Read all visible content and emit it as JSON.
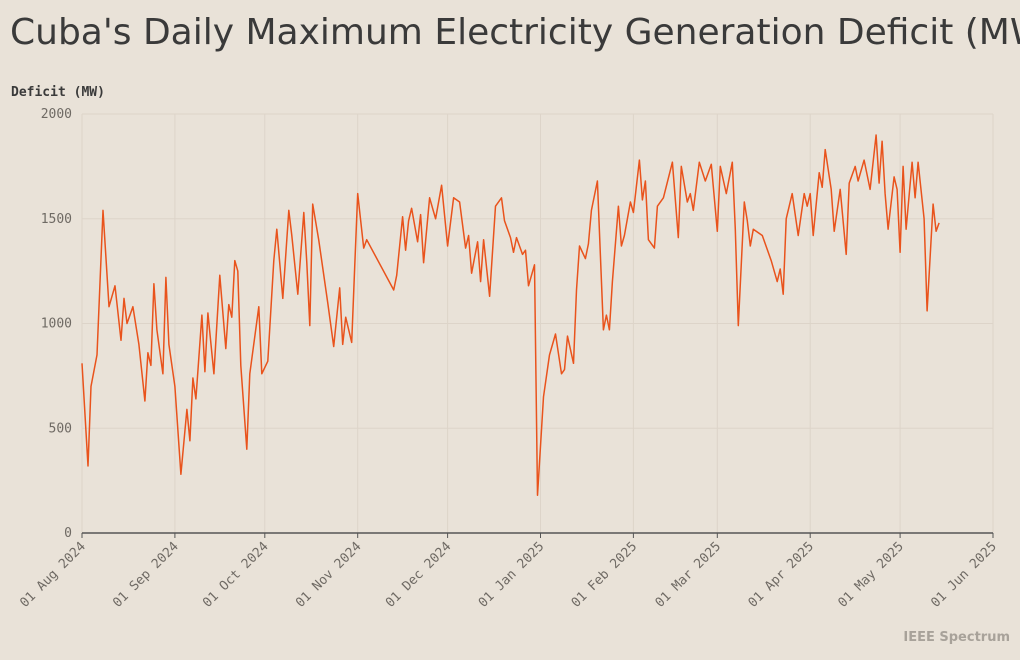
{
  "chart_data": {
    "type": "line",
    "title": "Cuba's Daily Maximum Electricity Generation Deficit (MW)",
    "y_label": "Deficit (MW)",
    "brand": "IEEE Spectrum",
    "xlim": [
      "2024-08-01",
      "2025-06-01"
    ],
    "xticks": [
      {
        "value": "2024-08-01",
        "label": "01 Aug 2024"
      },
      {
        "value": "2024-09-01",
        "label": "01 Sep 2024"
      },
      {
        "value": "2024-10-01",
        "label": "01 Oct 2024"
      },
      {
        "value": "2024-11-01",
        "label": "01 Nov 2024"
      },
      {
        "value": "2024-12-01",
        "label": "01 Dec 2024"
      },
      {
        "value": "2025-01-01",
        "label": "01 Jan 2025"
      },
      {
        "value": "2025-02-01",
        "label": "01 Feb 2025"
      },
      {
        "value": "2025-03-01",
        "label": "01 Mar 2025"
      },
      {
        "value": "2025-04-01",
        "label": "01 Apr 2025"
      },
      {
        "value": "2025-05-01",
        "label": "01 May 2025"
      },
      {
        "value": "2025-06-01",
        "label": "01 Jun 2025"
      }
    ],
    "ylim": [
      0,
      2000
    ],
    "yticks": [
      0,
      500,
      1000,
      1500,
      2000
    ],
    "grid": true,
    "x": [
      "2024-08-01",
      "2024-08-03",
      "2024-08-04",
      "2024-08-06",
      "2024-08-08",
      "2024-08-10",
      "2024-08-12",
      "2024-08-14",
      "2024-08-15",
      "2024-08-16",
      "2024-08-18",
      "2024-08-20",
      "2024-08-22",
      "2024-08-23",
      "2024-08-24",
      "2024-08-25",
      "2024-08-26",
      "2024-08-28",
      "2024-08-29",
      "2024-08-30",
      "2024-09-01",
      "2024-09-03",
      "2024-09-05",
      "2024-09-06",
      "2024-09-07",
      "2024-09-08",
      "2024-09-10",
      "2024-09-11",
      "2024-09-12",
      "2024-09-14",
      "2024-09-16",
      "2024-09-18",
      "2024-09-19",
      "2024-09-20",
      "2024-09-21",
      "2024-09-22",
      "2024-09-23",
      "2024-09-25",
      "2024-09-26",
      "2024-09-29",
      "2024-09-30",
      "2024-10-02",
      "2024-10-04",
      "2024-10-05",
      "2024-10-07",
      "2024-10-09",
      "2024-10-10",
      "2024-10-12",
      "2024-10-14",
      "2024-10-15",
      "2024-10-16",
      "2024-10-17",
      "2024-10-19",
      "2024-10-22",
      "2024-10-24",
      "2024-10-26",
      "2024-10-27",
      "2024-10-28",
      "2024-10-30",
      "2024-10-31",
      "2024-11-01",
      "2024-11-03",
      "2024-11-04",
      "2024-11-13",
      "2024-11-14",
      "2024-11-16",
      "2024-11-17",
      "2024-11-18",
      "2024-11-19",
      "2024-11-21",
      "2024-11-22",
      "2024-11-23",
      "2024-11-25",
      "2024-11-27",
      "2024-11-29",
      "2024-12-01",
      "2024-12-03",
      "2024-12-05",
      "2024-12-07",
      "2024-12-08",
      "2024-12-09",
      "2024-12-11",
      "2024-12-12",
      "2024-12-13",
      "2024-12-15",
      "2024-12-17",
      "2024-12-19",
      "2024-12-20",
      "2024-12-22",
      "2024-12-23",
      "2024-12-24",
      "2024-12-26",
      "2024-12-27",
      "2024-12-28",
      "2024-12-30",
      "2024-12-31",
      "2025-01-02",
      "2025-01-04",
      "2025-01-06",
      "2025-01-08",
      "2025-01-09",
      "2025-01-10",
      "2025-01-12",
      "2025-01-13",
      "2025-01-14",
      "2025-01-16",
      "2025-01-17",
      "2025-01-18",
      "2025-01-20",
      "2025-01-22",
      "2025-01-23",
      "2025-01-24",
      "2025-01-25",
      "2025-01-27",
      "2025-01-28",
      "2025-01-29",
      "2025-01-31",
      "2025-02-01",
      "2025-02-03",
      "2025-02-04",
      "2025-02-05",
      "2025-02-06",
      "2025-02-08",
      "2025-02-09",
      "2025-02-11",
      "2025-02-14",
      "2025-02-16",
      "2025-02-17",
      "2025-02-19",
      "2025-02-20",
      "2025-02-21",
      "2025-02-23",
      "2025-02-25",
      "2025-02-27",
      "2025-03-01",
      "2025-03-02",
      "2025-03-04",
      "2025-03-06",
      "2025-03-07",
      "2025-03-08",
      "2025-03-10",
      "2025-03-11",
      "2025-03-12",
      "2025-03-13",
      "2025-03-16",
      "2025-03-19",
      "2025-03-21",
      "2025-03-22",
      "2025-03-23",
      "2025-03-24",
      "2025-03-26",
      "2025-03-28",
      "2025-03-30",
      "2025-03-31",
      "2025-04-01",
      "2025-04-02",
      "2025-04-04",
      "2025-04-05",
      "2025-04-06",
      "2025-04-08",
      "2025-04-09",
      "2025-04-11",
      "2025-04-13",
      "2025-04-14",
      "2025-04-16",
      "2025-04-17",
      "2025-04-19",
      "2025-04-21",
      "2025-04-23",
      "2025-04-24",
      "2025-04-25",
      "2025-04-26",
      "2025-04-27",
      "2025-04-29",
      "2025-04-30",
      "2025-05-01",
      "2025-05-02",
      "2025-05-03",
      "2025-05-05",
      "2025-05-06",
      "2025-05-07",
      "2025-05-09",
      "2025-05-10",
      "2025-05-12",
      "2025-05-13",
      "2025-05-14"
    ],
    "series": [
      {
        "name": "Deficit",
        "color": "#e9531c",
        "values": [
          810,
          320,
          700,
          850,
          1540,
          1080,
          1180,
          920,
          1120,
          1000,
          1080,
          900,
          630,
          860,
          800,
          1190,
          970,
          760,
          1220,
          900,
          700,
          280,
          590,
          440,
          740,
          640,
          1040,
          770,
          1050,
          760,
          1230,
          880,
          1090,
          1030,
          1300,
          1250,
          800,
          400,
          760,
          1080,
          760,
          820,
          1300,
          1450,
          1120,
          1540,
          1420,
          1140,
          1530,
          1290,
          990,
          1570,
          1400,
          1100,
          890,
          1170,
          900,
          1030,
          910,
          1270,
          1620,
          1360,
          1400,
          1160,
          1230,
          1510,
          1350,
          1490,
          1550,
          1390,
          1520,
          1290,
          1600,
          1500,
          1660,
          1370,
          1600,
          1580,
          1360,
          1420,
          1240,
          1390,
          1200,
          1400,
          1130,
          1560,
          1600,
          1490,
          1410,
          1340,
          1410,
          1330,
          1350,
          1180,
          1280,
          180,
          650,
          850,
          950,
          760,
          780,
          940,
          810,
          1160,
          1370,
          1310,
          1380,
          1540,
          1680,
          970,
          1040,
          970,
          1200,
          1560,
          1370,
          1420,
          1580,
          1530,
          1780,
          1590,
          1680,
          1400,
          1360,
          1560,
          1600,
          1770,
          1410,
          1750,
          1580,
          1620,
          1540,
          1770,
          1680,
          1760,
          1440,
          1750,
          1620,
          1770,
          1450,
          990,
          1580,
          1490,
          1370,
          1450,
          1420,
          1300,
          1200,
          1260,
          1140,
          1500,
          1620,
          1420,
          1620,
          1560,
          1620,
          1420,
          1720,
          1650,
          1830,
          1640,
          1440,
          1640,
          1330,
          1670,
          1750,
          1680,
          1780,
          1640,
          1900,
          1670,
          1870,
          1620,
          1450,
          1700,
          1640,
          1340,
          1750,
          1450,
          1770,
          1600,
          1770,
          1500,
          1060,
          1570,
          1440,
          1480
        ]
      }
    ]
  }
}
